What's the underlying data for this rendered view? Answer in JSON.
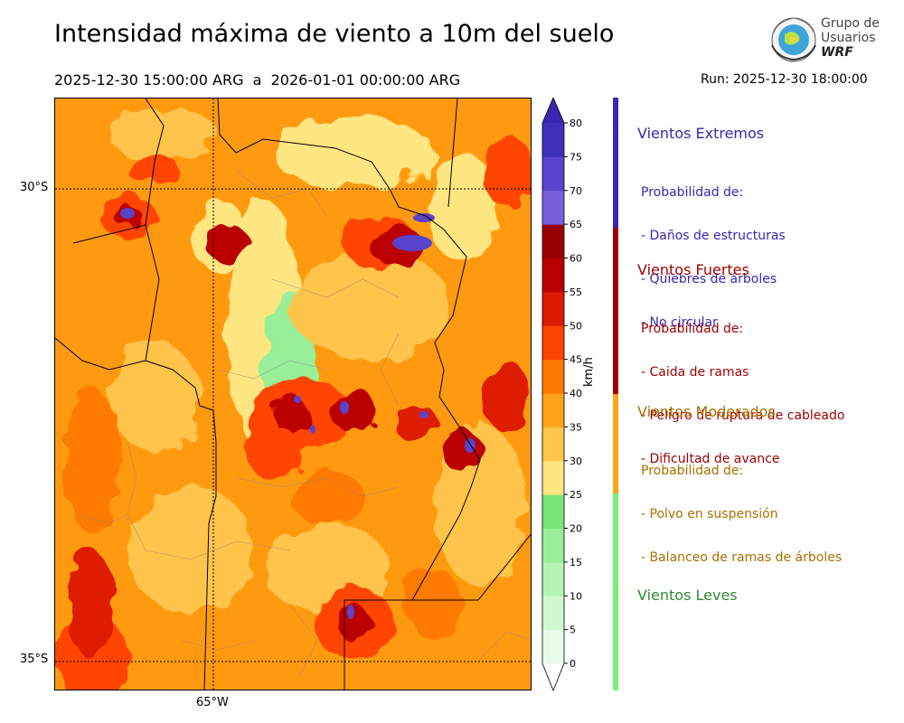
{
  "header": {
    "title": "Intensidad máxima de viento a 10m del suelo",
    "period": "2025-12-30 15:00:00 ARG  a  2026-01-01 00:00:00 ARG",
    "run": "Run: 2025-12-30 18:00:00"
  },
  "logo": {
    "line1": "Grupo de",
    "line2": "Usuarios",
    "line3": "WRF"
  },
  "map": {
    "lat_labels": [
      "30°S",
      "35°S"
    ],
    "lon_labels": [
      "65°W"
    ]
  },
  "colorbar": {
    "unit": "km/h",
    "ticks": [
      0,
      5,
      10,
      15,
      20,
      25,
      30,
      35,
      40,
      45,
      50,
      55,
      60,
      65,
      70,
      75,
      80
    ],
    "colors": [
      "#e8fde8",
      "#d0f8d0",
      "#b4f4b4",
      "#98ef98",
      "#78e878",
      "#ffe680",
      "#ffc44a",
      "#ffa31a",
      "#ff7a00",
      "#ff4400",
      "#dd1a00",
      "#bb0000",
      "#990000",
      "#7660dd",
      "#5a44cc",
      "#4030b8"
    ],
    "top_color": "#3a26b0"
  },
  "legend": [
    {
      "title": "Vientos Extremos",
      "color": "#3a26b0",
      "lines": [
        "Probabilidad de:",
        "- Daños de estructuras",
        "- Quiebres de árboles",
        "- No circular"
      ]
    },
    {
      "title": "Vientos Fuertes",
      "color": "#9e0000",
      "lines": [
        "Probabilidad de:",
        "- Caida de ramas",
        "- Peligro de ruptura de cableado",
        "- Dificultad de avance"
      ]
    },
    {
      "title": "Vientos Moderados",
      "color": "#a87000",
      "bar_color": "#ffa31a",
      "lines": [
        "Probabilidad de:",
        "- Polvo en suspensión",
        "- Balanceo de ramas de árboles"
      ]
    },
    {
      "title": "Vientos Leves",
      "color": "#2e8b2e",
      "bar_color": "#78f078",
      "lines": []
    }
  ]
}
